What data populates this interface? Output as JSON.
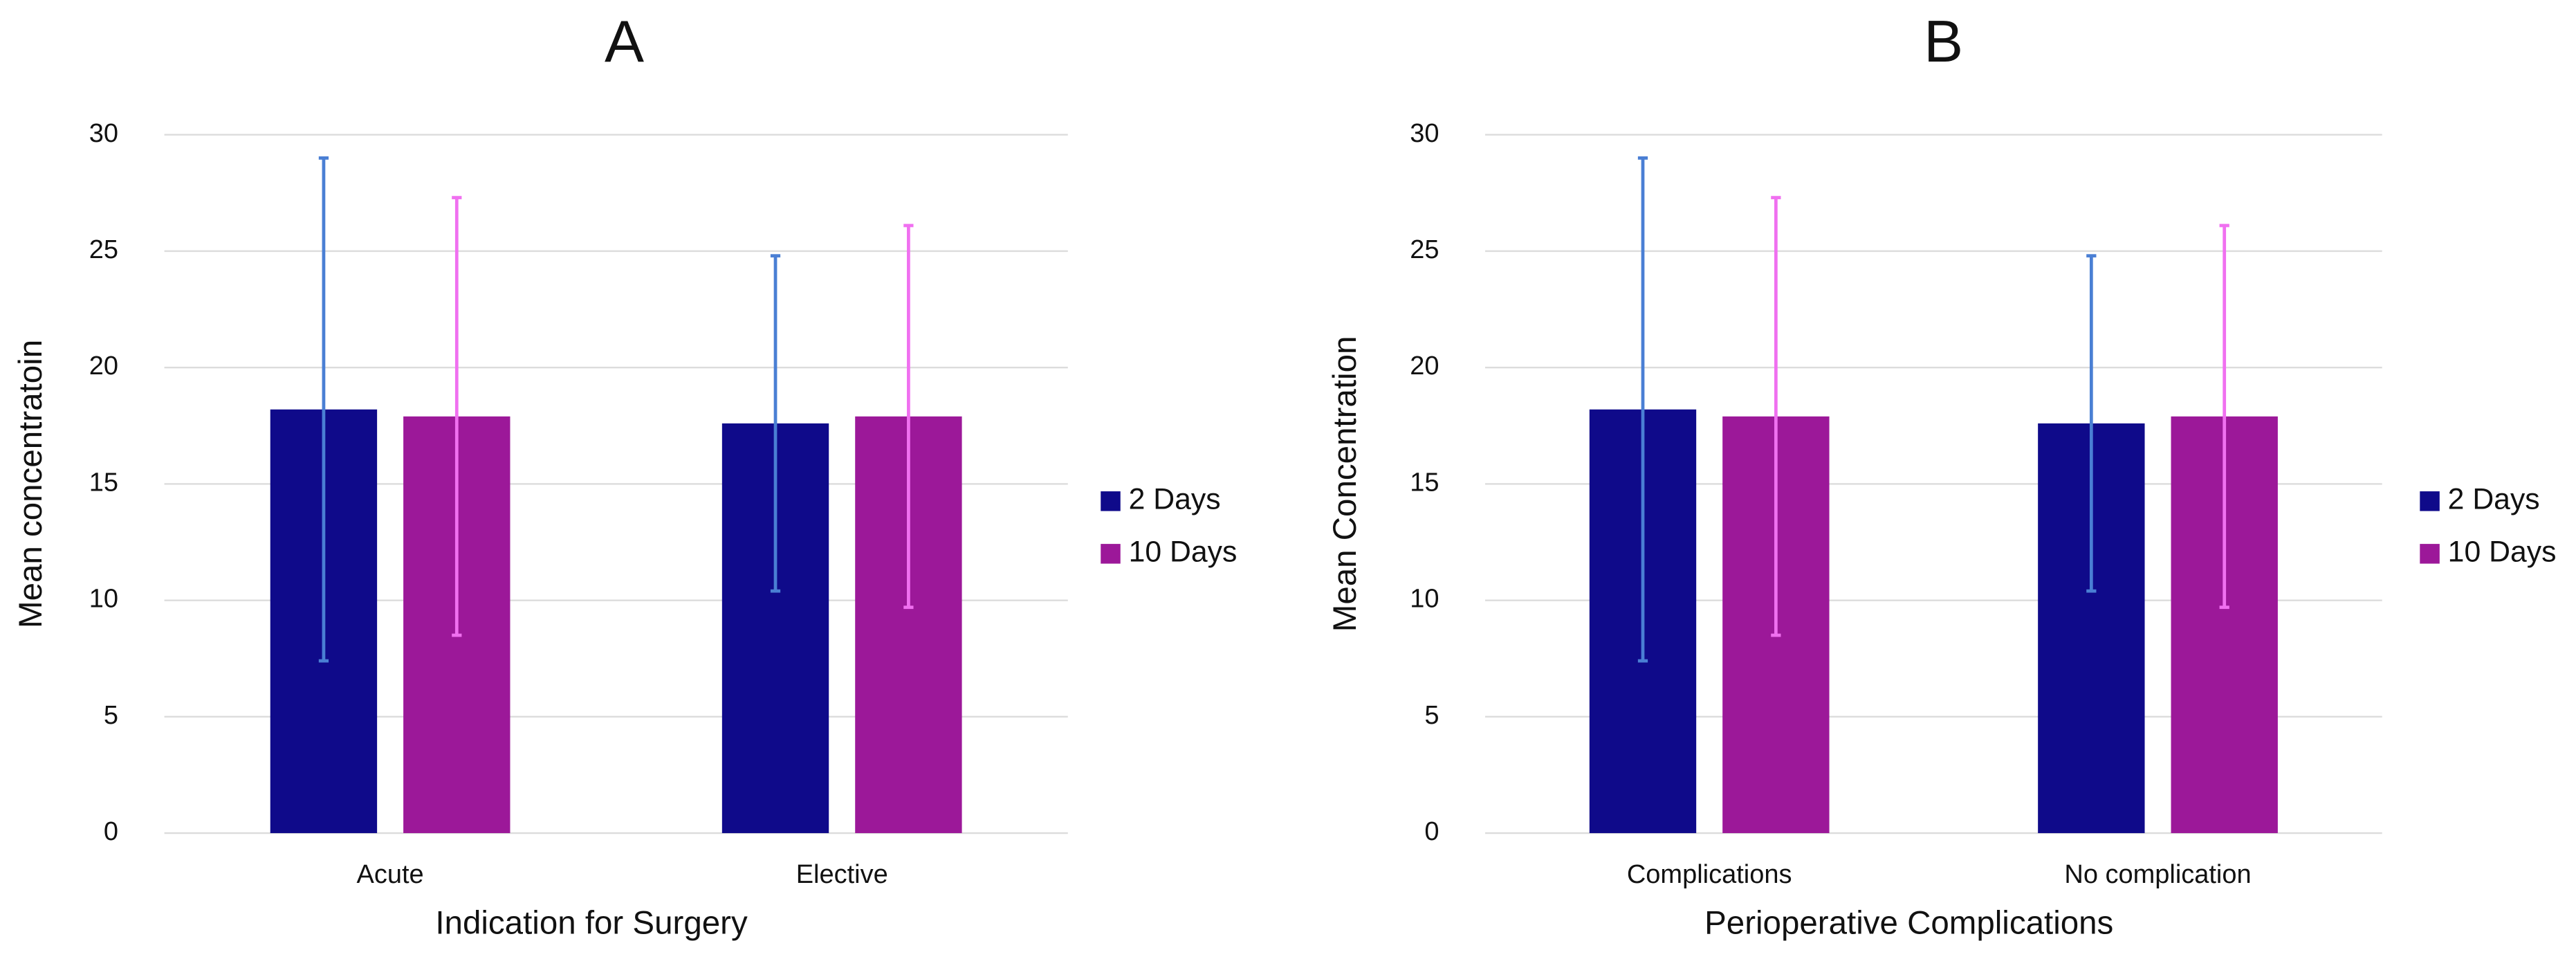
{
  "chart_data": [
    {
      "type": "bar",
      "title": "A",
      "x_label": "Indication for Surgery",
      "y_label": "Mean concentratoin",
      "categories": [
        "Acute",
        "Elective"
      ],
      "series": [
        {
          "name": "2 Days",
          "color": "#0f0a8a",
          "error_color": "#4a7fd4",
          "values": [
            18.2,
            17.6
          ],
          "errors": [
            10.8,
            7.2
          ]
        },
        {
          "name": "10 Days",
          "color": "#9c1899",
          "error_color": "#f070f0",
          "values": [
            17.9,
            17.9
          ],
          "errors": [
            9.4,
            8.2
          ]
        }
      ],
      "ylim": [
        0,
        30
      ],
      "yticks": [
        0,
        5,
        10,
        15,
        20,
        25,
        30
      ],
      "grid": true,
      "legend": "right"
    },
    {
      "type": "bar",
      "title": "B",
      "x_label": "Perioperative Complications",
      "y_label": "Mean Concentration",
      "categories": [
        "Complications",
        "No complication"
      ],
      "series": [
        {
          "name": "2 Days",
          "color": "#0f0a8a",
          "error_color": "#4a7fd4",
          "values": [
            18.2,
            17.6
          ],
          "errors": [
            10.8,
            7.2
          ]
        },
        {
          "name": "10 Days",
          "color": "#9c1899",
          "error_color": "#f070f0",
          "values": [
            17.9,
            17.9
          ],
          "errors": [
            9.4,
            8.2
          ]
        }
      ],
      "ylim": [
        0,
        30
      ],
      "yticks": [
        0,
        5,
        10,
        15,
        20,
        25,
        30
      ],
      "grid": true,
      "legend": "right"
    }
  ]
}
